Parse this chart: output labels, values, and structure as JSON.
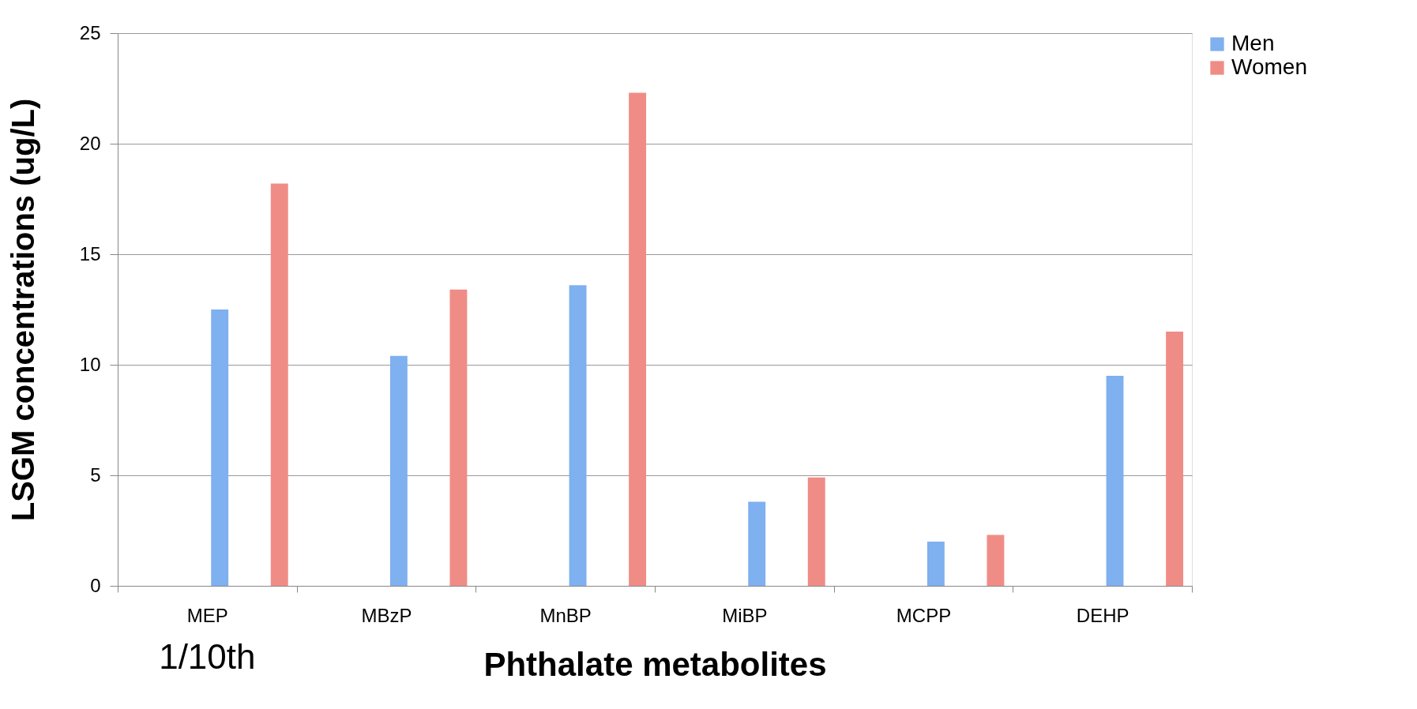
{
  "chart_data": {
    "type": "bar",
    "xlabel": "Phthalate metabolites",
    "ylabel": "LSGM concentrations (ug/L)",
    "categories": [
      "MEP",
      "MBzP",
      "MnBP",
      "MiBP",
      "MCPP",
      "DEHP"
    ],
    "series": [
      {
        "name": "Men",
        "color": "#7fb0ef",
        "values": [
          12.5,
          10.4,
          13.6,
          3.8,
          2.0,
          9.5
        ]
      },
      {
        "name": "Women",
        "color": "#f08c86",
        "values": [
          18.2,
          13.4,
          22.3,
          4.9,
          2.3,
          11.5
        ]
      }
    ],
    "ylim": [
      0,
      25
    ],
    "yticks": [
      0,
      5,
      10,
      15,
      20,
      25
    ],
    "grid": "y",
    "legend": "right",
    "annotations": [
      "1/10th"
    ]
  }
}
